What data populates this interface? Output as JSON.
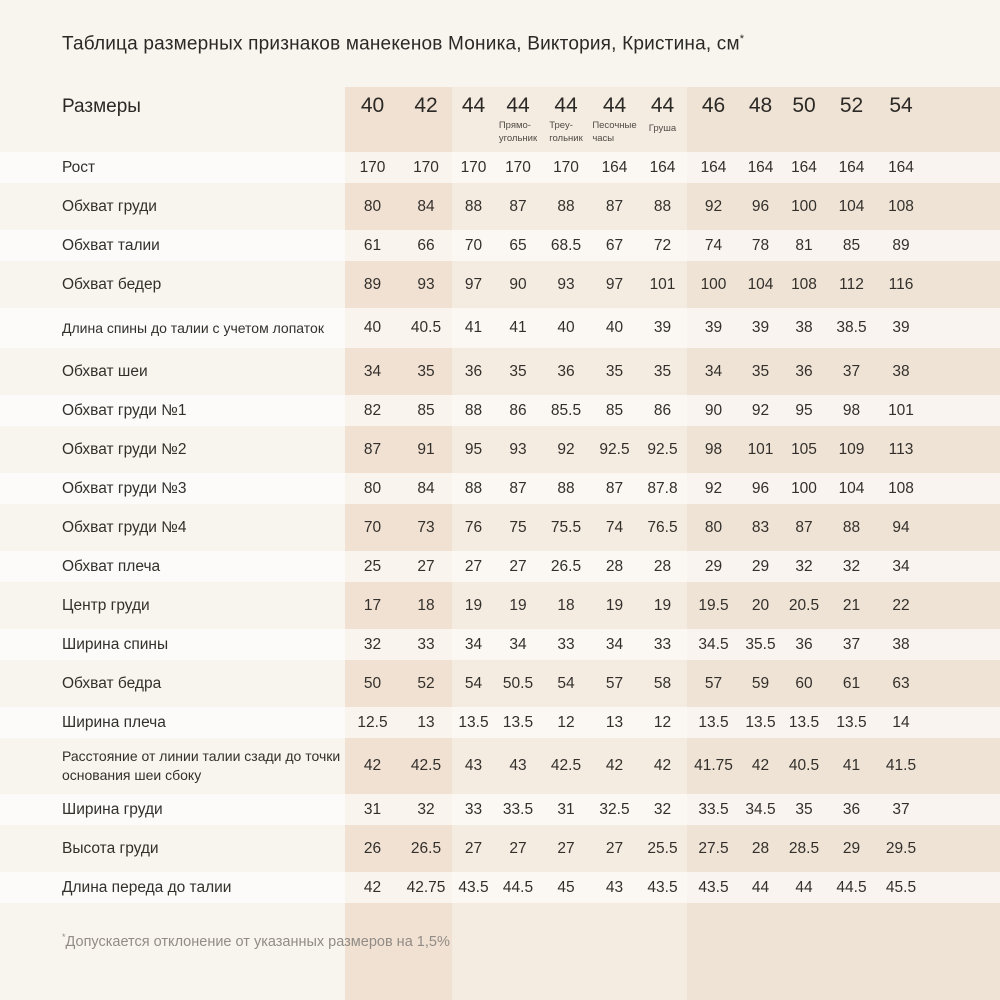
{
  "page": {
    "title": "Таблица размерных признаков манекенов Моника, Виктория, Кристина, см",
    "title_note_mark": "*",
    "footnote_mark": "*",
    "footnote": "Допускается отклонение от указанных размеров на 1,5%"
  },
  "table": {
    "corner_label": "Размеры",
    "columns": [
      {
        "size": "40",
        "subtitle_lines": []
      },
      {
        "size": "42",
        "subtitle_lines": []
      },
      {
        "size": "44",
        "subtitle_lines": []
      },
      {
        "size": "44",
        "subtitle_lines": [
          "Прямо-",
          "угольник"
        ]
      },
      {
        "size": "44",
        "subtitle_lines": [
          "Треу-",
          "гольник"
        ]
      },
      {
        "size": "44",
        "subtitle_lines": [
          "Песочные",
          "часы"
        ]
      },
      {
        "size": "44",
        "subtitle_lines": [
          "Груша"
        ]
      },
      {
        "size": "46",
        "subtitle_lines": []
      },
      {
        "size": "48",
        "subtitle_lines": []
      },
      {
        "size": "50",
        "subtitle_lines": []
      },
      {
        "size": "52",
        "subtitle_lines": []
      },
      {
        "size": "54",
        "subtitle_lines": []
      }
    ],
    "rows": [
      {
        "label": "Рост",
        "wrap": false,
        "values": [
          "170",
          "170",
          "170",
          "170",
          "170",
          "164",
          "164",
          "164",
          "164",
          "164",
          "164",
          "164"
        ]
      },
      {
        "label": "Обхват груди",
        "wrap": false,
        "values": [
          "80",
          "84",
          "88",
          "87",
          "88",
          "87",
          "88",
          "92",
          "96",
          "100",
          "104",
          "108"
        ]
      },
      {
        "label": "Обхват талии",
        "wrap": false,
        "values": [
          "61",
          "66",
          "70",
          "65",
          "68.5",
          "67",
          "72",
          "74",
          "78",
          "81",
          "85",
          "89"
        ]
      },
      {
        "label": "Обхват бедер",
        "wrap": false,
        "values": [
          "89",
          "93",
          "97",
          "90",
          "93",
          "97",
          "101",
          "100",
          "104",
          "108",
          "112",
          "116"
        ]
      },
      {
        "label": "Длина спины до талии с учетом лопаток",
        "wrap": true,
        "values": [
          "40",
          "40.5",
          "41",
          "41",
          "40",
          "40",
          "39",
          "39",
          "39",
          "38",
          "38.5",
          "39"
        ]
      },
      {
        "label": "Обхват шеи",
        "wrap": false,
        "values": [
          "34",
          "35",
          "36",
          "35",
          "36",
          "35",
          "35",
          "34",
          "35",
          "36",
          "37",
          "38"
        ]
      },
      {
        "label": "Обхват груди №1",
        "wrap": false,
        "values": [
          "82",
          "85",
          "88",
          "86",
          "85.5",
          "85",
          "86",
          "90",
          "92",
          "95",
          "98",
          "101"
        ]
      },
      {
        "label": "Обхват груди №2",
        "wrap": false,
        "values": [
          "87",
          "91",
          "95",
          "93",
          "92",
          "92.5",
          "92.5",
          "98",
          "101",
          "105",
          "109",
          "113"
        ]
      },
      {
        "label": "Обхват груди №3",
        "wrap": false,
        "values": [
          "80",
          "84",
          "88",
          "87",
          "88",
          "87",
          "87.8",
          "92",
          "96",
          "100",
          "104",
          "108"
        ]
      },
      {
        "label": "Обхват груди №4",
        "wrap": false,
        "values": [
          "70",
          "73",
          "76",
          "75",
          "75.5",
          "74",
          "76.5",
          "80",
          "83",
          "87",
          "88",
          "94"
        ]
      },
      {
        "label": "Обхват плеча",
        "wrap": false,
        "values": [
          "25",
          "27",
          "27",
          "27",
          "26.5",
          "28",
          "28",
          "29",
          "29",
          "32",
          "32",
          "34"
        ]
      },
      {
        "label": "Центр груди",
        "wrap": false,
        "values": [
          "17",
          "18",
          "19",
          "19",
          "18",
          "19",
          "19",
          "19.5",
          "20",
          "20.5",
          "21",
          "22"
        ]
      },
      {
        "label": "Ширина спины",
        "wrap": false,
        "values": [
          "32",
          "33",
          "34",
          "34",
          "33",
          "34",
          "33",
          "34.5",
          "35.5",
          "36",
          "37",
          "38"
        ]
      },
      {
        "label": "Обхват бедра",
        "wrap": false,
        "values": [
          "50",
          "52",
          "54",
          "50.5",
          "54",
          "57",
          "58",
          "57",
          "59",
          "60",
          "61",
          "63"
        ]
      },
      {
        "label": "Ширина плеча",
        "wrap": false,
        "values": [
          "12.5",
          "13",
          "13.5",
          "13.5",
          "12",
          "13",
          "12",
          "13.5",
          "13.5",
          "13.5",
          "13.5",
          "14"
        ]
      },
      {
        "label": "Расстояние от линии талии сзади до точки основания шеи сбоку",
        "wrap": true,
        "values": [
          "42",
          "42.5",
          "43",
          "43",
          "42.5",
          "42",
          "42",
          "41.75",
          "42",
          "40.5",
          "41",
          "41.5"
        ]
      },
      {
        "label": "Ширина груди",
        "wrap": false,
        "values": [
          "31",
          "32",
          "33",
          "33.5",
          "31",
          "32.5",
          "32",
          "33.5",
          "34.5",
          "35",
          "36",
          "37"
        ]
      },
      {
        "label": "Высота груди",
        "wrap": false,
        "values": [
          "26",
          "26.5",
          "27",
          "27",
          "27",
          "27",
          "25.5",
          "27.5",
          "28",
          "28.5",
          "29",
          "29.5"
        ]
      },
      {
        "label": "Длина переда до талии",
        "wrap": false,
        "values": [
          "42",
          "42.75",
          "43.5",
          "44.5",
          "45",
          "43",
          "43.5",
          "43.5",
          "44",
          "44",
          "44.5",
          "45.5"
        ]
      }
    ]
  },
  "colors": {
    "page_bg": "#f8f4ee",
    "band_dark": "#f1e1d2",
    "band_light": "#f5ece1",
    "band_right": "#efe3d5",
    "row_stripe": "rgba(255,255,255,0.62)"
  }
}
